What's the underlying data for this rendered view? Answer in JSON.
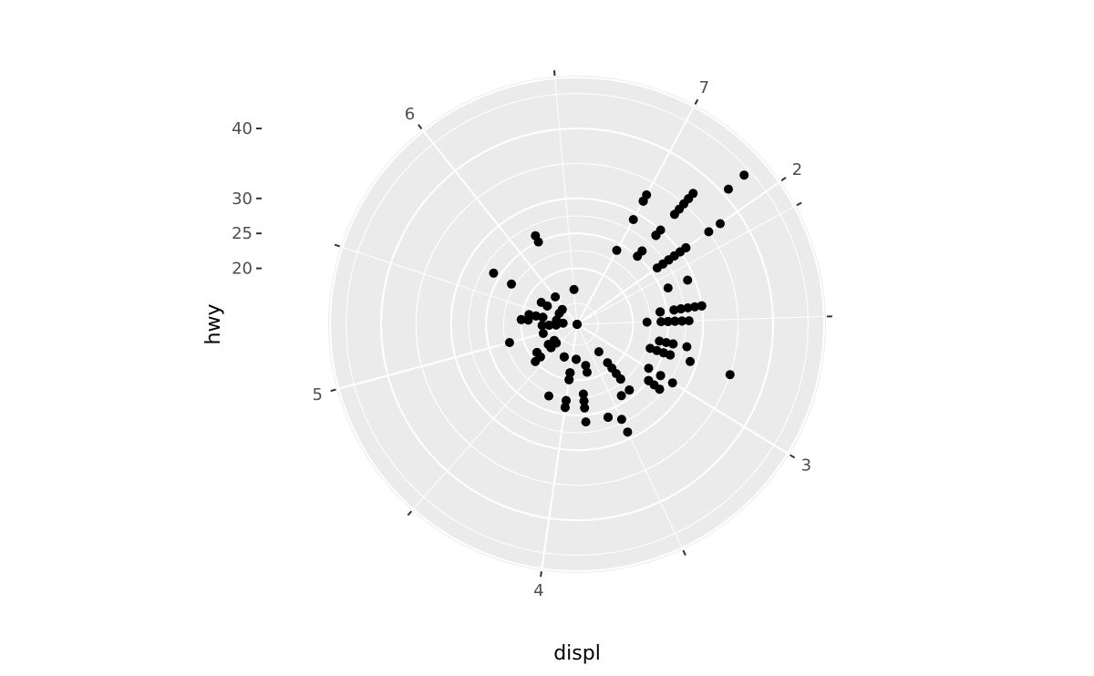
{
  "chart_data": {
    "type": "scatter",
    "coord": "polar",
    "theta_variable": "displ",
    "r_variable": "hwy",
    "xlabel": "displ",
    "ylabel": "hwy",
    "theta_ticks": [
      "2",
      "3",
      "4",
      "5",
      "6",
      "7"
    ],
    "r_ticks": [
      "20",
      "25",
      "30",
      "40"
    ],
    "theta_range": [
      1.6,
      7.0
    ],
    "r_range": [
      12,
      44
    ],
    "grid": true,
    "points": [
      [
        1.8,
        29
      ],
      [
        1.8,
        29
      ],
      [
        2.0,
        31
      ],
      [
        2.0,
        30
      ],
      [
        2.8,
        26
      ],
      [
        2.8,
        26
      ],
      [
        3.1,
        27
      ],
      [
        1.8,
        26
      ],
      [
        1.8,
        25
      ],
      [
        2.0,
        28
      ],
      [
        2.0,
        27
      ],
      [
        2.8,
        25
      ],
      [
        2.8,
        25
      ],
      [
        3.1,
        25
      ],
      [
        3.1,
        25
      ],
      [
        2.8,
        24
      ],
      [
        3.1,
        25
      ],
      [
        4.2,
        23
      ],
      [
        5.3,
        20
      ],
      [
        5.3,
        15
      ],
      [
        5.3,
        20
      ],
      [
        5.7,
        17
      ],
      [
        6.0,
        17
      ],
      [
        5.7,
        26
      ],
      [
        5.7,
        23
      ],
      [
        6.2,
        26
      ],
      [
        6.2,
        25
      ],
      [
        7.0,
        24
      ],
      [
        5.3,
        19
      ],
      [
        5.3,
        14
      ],
      [
        5.7,
        15
      ],
      [
        6.5,
        17
      ],
      [
        2.4,
        27
      ],
      [
        2.4,
        30
      ],
      [
        3.1,
        26
      ],
      [
        3.5,
        29
      ],
      [
        3.6,
        26
      ],
      [
        2.4,
        24
      ],
      [
        3.0,
        24
      ],
      [
        3.3,
        22
      ],
      [
        3.3,
        22
      ],
      [
        3.3,
        24
      ],
      [
        3.3,
        24
      ],
      [
        3.3,
        24
      ],
      [
        3.3,
        22
      ],
      [
        3.3,
        21
      ],
      [
        3.8,
        23
      ],
      [
        3.8,
        23
      ],
      [
        3.8,
        22
      ],
      [
        4.0,
        23
      ],
      [
        3.7,
        19
      ],
      [
        3.7,
        18
      ],
      [
        3.9,
        17
      ],
      [
        3.9,
        17
      ],
      [
        4.7,
        19
      ],
      [
        4.7,
        19
      ],
      [
        4.7,
        12
      ],
      [
        5.2,
        17
      ],
      [
        5.2,
        15
      ],
      [
        3.9,
        17
      ],
      [
        4.7,
        17
      ],
      [
        4.7,
        12
      ],
      [
        4.7,
        17
      ],
      [
        5.2,
        16
      ],
      [
        5.7,
        18
      ],
      [
        5.9,
        15
      ],
      [
        4.7,
        16
      ],
      [
        4.7,
        12
      ],
      [
        4.7,
        17
      ],
      [
        4.7,
        17
      ],
      [
        4.7,
        16
      ],
      [
        4.7,
        12
      ],
      [
        5.2,
        15
      ],
      [
        5.2,
        16
      ],
      [
        5.7,
        17
      ],
      [
        5.9,
        15
      ],
      [
        4.6,
        17
      ],
      [
        5.4,
        17
      ],
      [
        5.4,
        18
      ],
      [
        5.4,
        17
      ],
      [
        4.0,
        19
      ],
      [
        4.0,
        19
      ],
      [
        4.0,
        19
      ],
      [
        4.0,
        19
      ],
      [
        4.6,
        17
      ],
      [
        5.0,
        17
      ],
      [
        4.2,
        17
      ],
      [
        4.2,
        17
      ],
      [
        4.6,
        16
      ],
      [
        4.6,
        16
      ],
      [
        4.6,
        17
      ],
      [
        5.4,
        15
      ],
      [
        4.6,
        17
      ],
      [
        5.4,
        17
      ],
      [
        5.4,
        18
      ],
      [
        4.0,
        20
      ],
      [
        4.2,
        17
      ],
      [
        4.6,
        17
      ],
      [
        4.6,
        16
      ],
      [
        1.6,
        33
      ],
      [
        1.6,
        32
      ],
      [
        1.6,
        32
      ],
      [
        1.6,
        29
      ],
      [
        1.6,
        32
      ],
      [
        1.8,
        34
      ],
      [
        1.8,
        36
      ],
      [
        1.8,
        36
      ],
      [
        2.0,
        29
      ],
      [
        2.0,
        26
      ],
      [
        2.0,
        27
      ],
      [
        2.0,
        30
      ],
      [
        2.0,
        31
      ],
      [
        2.7,
        26
      ],
      [
        2.7,
        26
      ],
      [
        2.7,
        28
      ],
      [
        2.4,
        26
      ],
      [
        2.4,
        29
      ],
      [
        2.4,
        28
      ],
      [
        2.4,
        27
      ],
      [
        2.4,
        24
      ],
      [
        2.4,
        24
      ],
      [
        2.5,
        24
      ],
      [
        2.5,
        22
      ],
      [
        3.3,
        19
      ],
      [
        3.3,
        20
      ],
      [
        3.3,
        17
      ],
      [
        3.8,
        26
      ],
      [
        3.8,
        24
      ],
      [
        4.0,
        24
      ],
      [
        4.0,
        24
      ],
      [
        4.6,
        20
      ],
      [
        5.4,
        19
      ],
      [
        1.8,
        30
      ],
      [
        1.8,
        33
      ],
      [
        2.0,
        35
      ],
      [
        2.0,
        37
      ],
      [
        2.8,
        35
      ],
      [
        2.8,
        29
      ],
      [
        3.6,
        26
      ],
      [
        4.0,
        23
      ],
      [
        4.0,
        20
      ],
      [
        4.6,
        19
      ],
      [
        5.0,
        22
      ],
      [
        2.5,
        26
      ],
      [
        2.5,
        26
      ],
      [
        2.5,
        26
      ],
      [
        2.5,
        26
      ],
      [
        2.5,
        25
      ],
      [
        2.5,
        27
      ],
      [
        2.5,
        25
      ],
      [
        2.5,
        27
      ],
      [
        2.5,
        25
      ],
      [
        2.5,
        25
      ],
      [
        2.2,
        26
      ],
      [
        2.2,
        29
      ],
      [
        2.4,
        26
      ],
      [
        2.4,
        30
      ],
      [
        3.0,
        26
      ],
      [
        3.0,
        26
      ],
      [
        3.5,
        27
      ],
      [
        1.8,
        35
      ],
      [
        1.8,
        37
      ],
      [
        1.8,
        35
      ],
      [
        1.8,
        29
      ],
      [
        1.8,
        26
      ],
      [
        2.4,
        27
      ],
      [
        2.4,
        30
      ],
      [
        2.7,
        25
      ],
      [
        2.7,
        24
      ],
      [
        2.7,
        26
      ],
      [
        3.0,
        28
      ],
      [
        3.4,
        24
      ],
      [
        1.9,
        44
      ],
      [
        1.9,
        41
      ],
      [
        2.0,
        28
      ],
      [
        2.0,
        29
      ],
      [
        2.5,
        28
      ],
      [
        2.8,
        23
      ],
      [
        1.8,
        29
      ],
      [
        1.8,
        29
      ],
      [
        2.0,
        28
      ],
      [
        2.0,
        29
      ],
      [
        2.8,
        26
      ],
      [
        2.8,
        26
      ],
      [
        3.6,
        26
      ],
      [
        1.8,
        29
      ],
      [
        1.8,
        29
      ],
      [
        2.0,
        31
      ],
      [
        2.0,
        30
      ],
      [
        2.8,
        26
      ],
      [
        2.8,
        26
      ],
      [
        3.1,
        27
      ]
    ]
  }
}
